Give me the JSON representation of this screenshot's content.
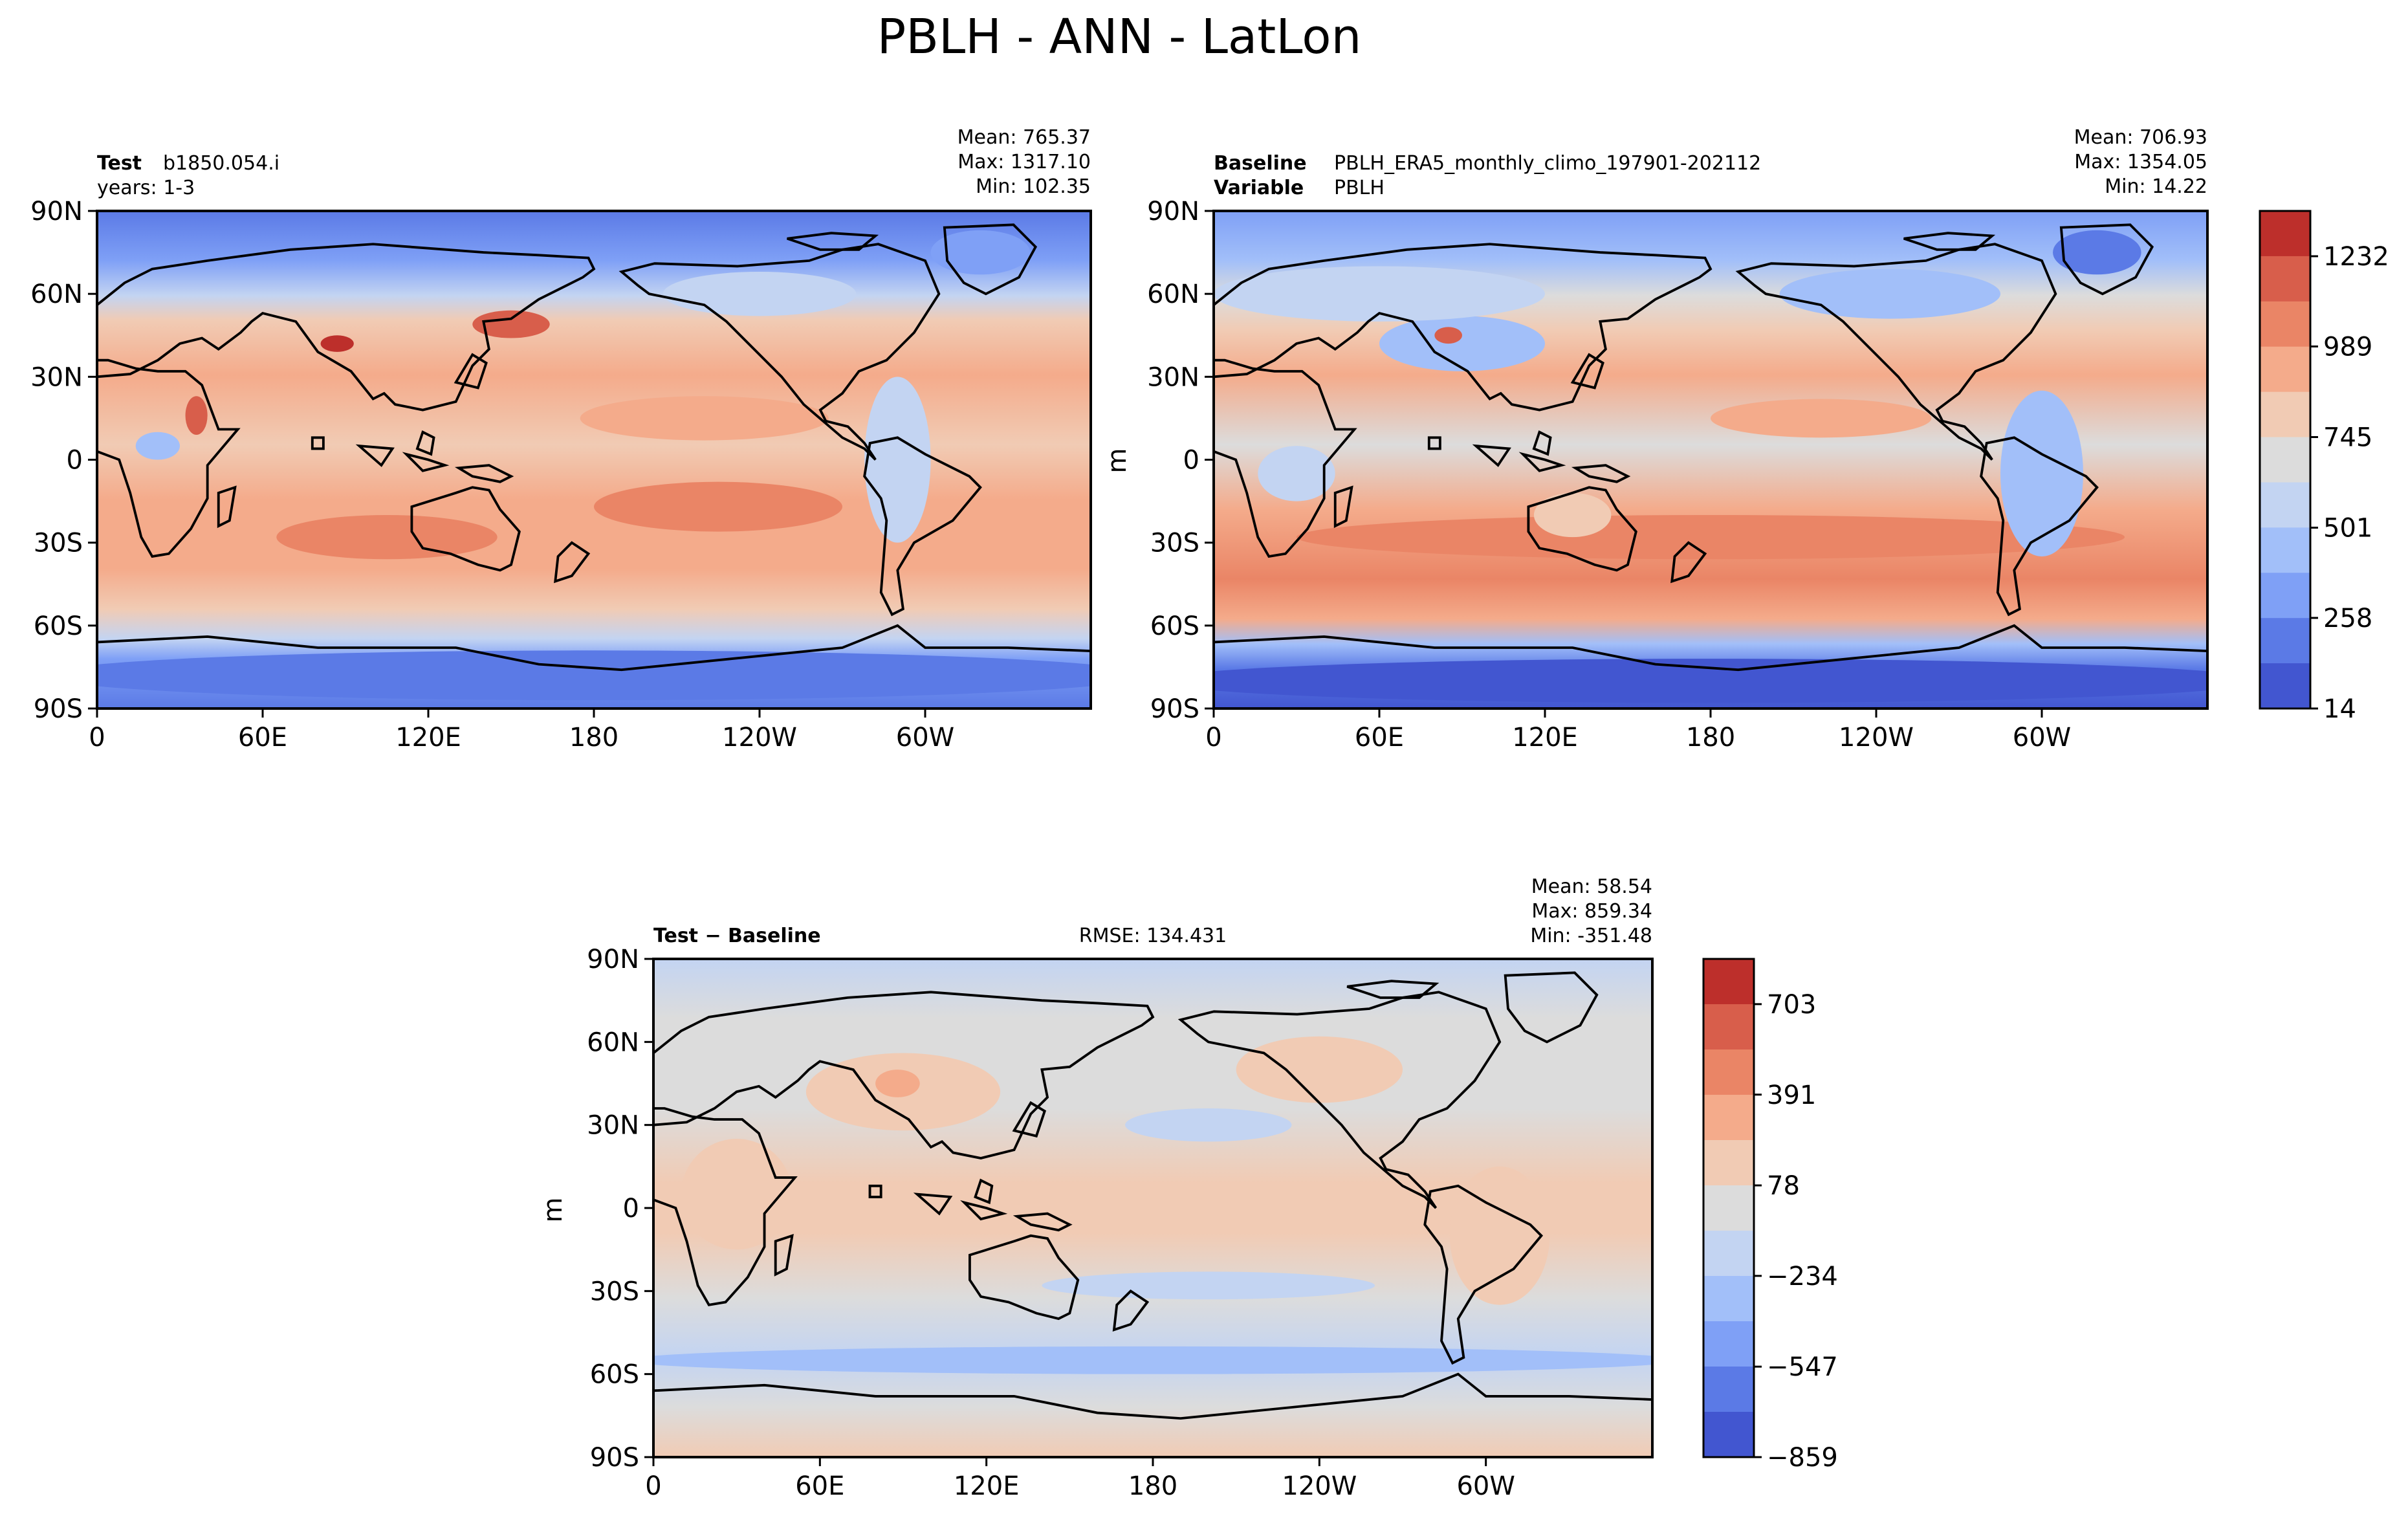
{
  "figure_title": "PBLH - ANN - LatLon",
  "colors": {
    "levels_palette": [
      "#4256d0",
      "#5b7ae6",
      "#7fa0f6",
      "#a2bff9",
      "#c3d4f2",
      "#dcdcdc",
      "#f1cbb4",
      "#f4ab8b",
      "#ea8566",
      "#d85e4b",
      "#bd2f2b"
    ]
  },
  "chart_data": [
    {
      "type": "heatmap",
      "panel": "test",
      "label_bold": "Test",
      "label_value": "b1850.054.i",
      "label_line2": "years: 1-3",
      "stats": {
        "mean": "Mean: 765.37",
        "max": "Max: 1317.10",
        "min": "Min: 102.35"
      },
      "xlabel": "",
      "ylabel": "",
      "xticks": [
        "0",
        "60E",
        "120E",
        "180",
        "120W",
        "60W"
      ],
      "yticks": [
        "90N",
        "60N",
        "30N",
        "0",
        "30S",
        "60S",
        "90S"
      ],
      "xlim": [
        0,
        360
      ],
      "ylim": [
        -90,
        90
      ]
    },
    {
      "type": "heatmap",
      "panel": "baseline",
      "label_bold": "Baseline",
      "label_value": "PBLH_ERA5_monthly_climo_197901-202112",
      "label2_bold": "Variable",
      "label2_value": "PBLH",
      "stats": {
        "mean": "Mean: 706.93",
        "max": "Max: 1354.05",
        "min": "Min: 14.22"
      },
      "ylabel": "m",
      "xticks": [
        "0",
        "60E",
        "120E",
        "180",
        "120W",
        "60W"
      ],
      "yticks": [
        "90N",
        "60N",
        "30N",
        "0",
        "30S",
        "60S",
        "90S"
      ],
      "xlim": [
        0,
        360
      ],
      "ylim": [
        -90,
        90
      ],
      "colorbar": {
        "ticks": [
          "1232",
          "989",
          "745",
          "501",
          "258",
          "14"
        ],
        "range": [
          14,
          1354
        ]
      }
    },
    {
      "type": "heatmap",
      "panel": "diff",
      "label_bold": "Test − Baseline",
      "rmse": "RMSE: 134.431",
      "stats": {
        "mean": "Mean: 58.54",
        "max": "Max: 859.34",
        "min": "Min: -351.48"
      },
      "ylabel": "m",
      "xticks": [
        "0",
        "60E",
        "120E",
        "180",
        "120W",
        "60W"
      ],
      "yticks": [
        "90N",
        "60N",
        "30N",
        "0",
        "30S",
        "60S",
        "90S"
      ],
      "xlim": [
        0,
        360
      ],
      "ylim": [
        -90,
        90
      ],
      "colorbar": {
        "ticks": [
          "703",
          "391",
          "78",
          "−234",
          "−547",
          "−859"
        ],
        "range": [
          -859,
          859
        ]
      }
    }
  ]
}
